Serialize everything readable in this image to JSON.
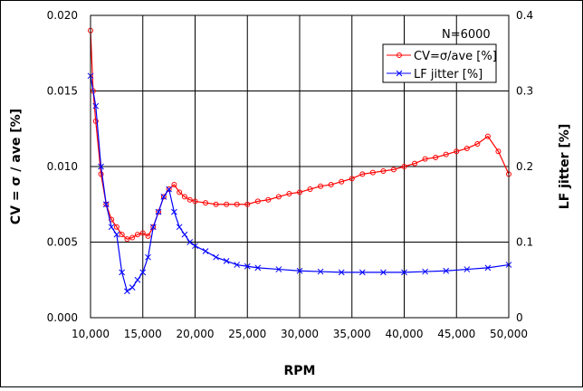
{
  "chart_data": {
    "type": "line",
    "xlabel": "RPM",
    "ylabel_left": "CV = σ / ave [%]",
    "ylabel_right": "LF jitter [%]",
    "annotation": "N=6000",
    "xlim": [
      10000,
      50000
    ],
    "ylim_left": [
      0,
      0.02
    ],
    "ylim_right": [
      0,
      0.4
    ],
    "x_ticks": [
      "10,000",
      "15,000",
      "20,000",
      "25,000",
      "30,000",
      "35,000",
      "40,000",
      "45,000",
      "50,000"
    ],
    "y_ticks_left": [
      "0.000",
      "0.005",
      "0.010",
      "0.015",
      "0.020"
    ],
    "y_ticks_right": [
      "0",
      "0.1",
      "0.2",
      "0.3",
      "0.4"
    ],
    "grid": true,
    "legend_position": "top-right",
    "series": [
      {
        "name": "CV=σ/ave [%]",
        "axis": "left",
        "color": "#ff0000",
        "marker": "circle",
        "x": [
          10000,
          10250,
          10500,
          11000,
          11500,
          12000,
          12500,
          13000,
          13500,
          14000,
          14500,
          15000,
          15500,
          16000,
          16500,
          17000,
          17500,
          18000,
          18500,
          19000,
          19500,
          20000,
          21000,
          22000,
          23000,
          24000,
          25000,
          26000,
          27000,
          28000,
          29000,
          30000,
          31000,
          32000,
          33000,
          34000,
          35000,
          36000,
          37000,
          38000,
          39000,
          40000,
          41000,
          42000,
          43000,
          44000,
          45000,
          46000,
          47000,
          48000,
          49000,
          50000
        ],
        "y": [
          0.019,
          0.015,
          0.013,
          0.0095,
          0.0075,
          0.0065,
          0.006,
          0.0055,
          0.0052,
          0.0053,
          0.0055,
          0.0056,
          0.0054,
          0.006,
          0.007,
          0.008,
          0.0085,
          0.0088,
          0.0083,
          0.008,
          0.0078,
          0.0077,
          0.0076,
          0.0075,
          0.0075,
          0.0075,
          0.0075,
          0.0077,
          0.0078,
          0.008,
          0.0082,
          0.0083,
          0.0085,
          0.0087,
          0.0088,
          0.009,
          0.0092,
          0.0095,
          0.0096,
          0.0097,
          0.0098,
          0.01,
          0.0102,
          0.0105,
          0.0106,
          0.0108,
          0.011,
          0.0112,
          0.0115,
          0.012,
          0.011,
          0.0095
        ]
      },
      {
        "name": "LF jitter [%]",
        "axis": "right",
        "color": "#0000ff",
        "marker": "x",
        "x": [
          10000,
          10500,
          11000,
          11500,
          12000,
          12500,
          13000,
          13500,
          14000,
          14500,
          15000,
          15500,
          16000,
          16500,
          17000,
          17500,
          18000,
          18500,
          19000,
          19500,
          20000,
          21000,
          22000,
          23000,
          24000,
          25000,
          26000,
          28000,
          30000,
          32000,
          34000,
          36000,
          38000,
          40000,
          42000,
          44000,
          46000,
          48000,
          50000
        ],
        "y": [
          0.32,
          0.28,
          0.2,
          0.15,
          0.12,
          0.11,
          0.06,
          0.035,
          0.04,
          0.05,
          0.06,
          0.08,
          0.12,
          0.14,
          0.16,
          0.17,
          0.14,
          0.12,
          0.11,
          0.1,
          0.095,
          0.088,
          0.08,
          0.075,
          0.07,
          0.068,
          0.066,
          0.064,
          0.062,
          0.061,
          0.06,
          0.06,
          0.06,
          0.06,
          0.061,
          0.062,
          0.064,
          0.066,
          0.07
        ]
      }
    ]
  }
}
